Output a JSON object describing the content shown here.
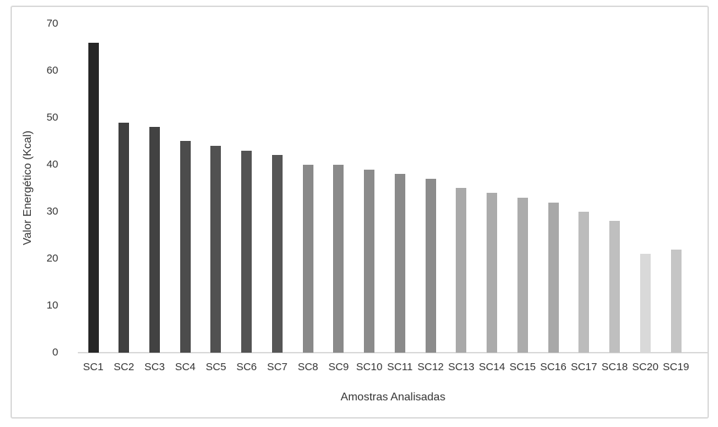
{
  "chart_data": {
    "type": "bar",
    "title": "",
    "xlabel": "Amostras Analisadas",
    "ylabel": "Valor Energético (Kcal)",
    "categories": [
      "SC1",
      "SC2",
      "SC3",
      "SC4",
      "SC5",
      "SC6",
      "SC7",
      "SC8",
      "SC9",
      "SC10",
      "SC11",
      "SC12",
      "SC13",
      "SC14",
      "SC15",
      "SC16",
      "SC17",
      "SC18",
      "SC20",
      "SC19"
    ],
    "values": [
      66,
      49,
      48,
      45,
      44,
      43,
      42,
      40,
      40,
      39,
      38,
      37,
      35,
      34,
      33,
      32,
      30,
      28,
      21,
      22
    ],
    "bar_colors": [
      "#262626",
      "#3f3f3f",
      "#424242",
      "#4c4c4c",
      "#515151",
      "#535353",
      "#565656",
      "#898989",
      "#8a8a8a",
      "#8b8b8b",
      "#8a8a8a",
      "#8c8c8c",
      "#a9a9a9",
      "#ababab",
      "#acacac",
      "#a8a8a8",
      "#bcbcbc",
      "#bfbfbf",
      "#d9d9d9",
      "#c5c5c5"
    ],
    "ylim": [
      0,
      70
    ],
    "yticks": [
      0,
      10,
      20,
      30,
      40,
      50,
      60,
      70
    ],
    "grid": "off",
    "legend": "none",
    "background_color": "#ffffff",
    "frame_border_color": "#d9d9d9",
    "axis_line_color": "#d9d9d9",
    "text_color": "#333333"
  }
}
